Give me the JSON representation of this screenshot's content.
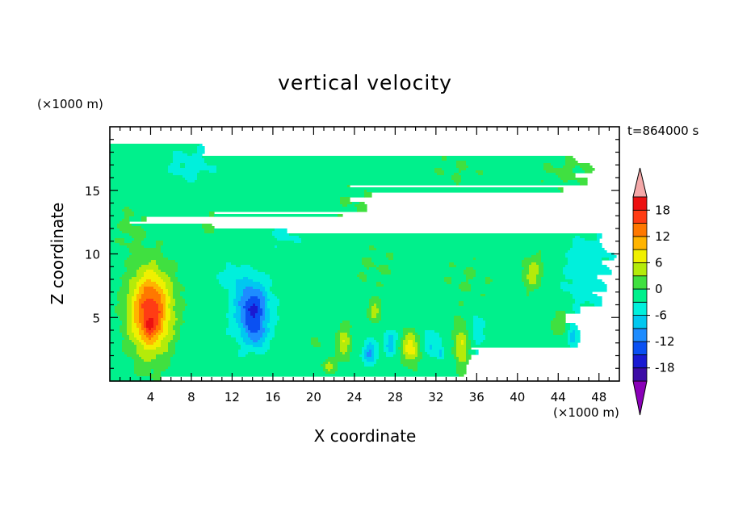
{
  "chart_data": {
    "type": "heatmap",
    "title": "vertical velocity",
    "xlabel": "X coordinate",
    "ylabel": "Z coordinate",
    "x_unit": "(×1000 m)",
    "z_unit": "(×1000 m)",
    "time_label": "t=864000 s",
    "x_ticks": [
      "4",
      "8",
      "12",
      "16",
      "20",
      "24",
      "28",
      "32",
      "36",
      "40",
      "44",
      "48"
    ],
    "z_ticks": [
      "5",
      "10",
      "15"
    ],
    "xlim": [
      0,
      50
    ],
    "zlim": [
      0,
      20
    ],
    "colorbar": {
      "labels": [
        "18",
        "12",
        "6",
        "0",
        "-6",
        "-12",
        "-18"
      ],
      "levels": [
        -21,
        -18,
        -15,
        -12,
        -9,
        -6,
        -3,
        0,
        3,
        6,
        9,
        12,
        15,
        18,
        21
      ],
      "colors": [
        "#8a00b8",
        "#3c0ca6",
        "#1a1ad2",
        "#0a50f2",
        "#1e8cff",
        "#00c8f0",
        "#00f0dc",
        "#00f08c",
        "#40e040",
        "#b4eb0a",
        "#f0f000",
        "#ffb400",
        "#ff7800",
        "#ff3c14",
        "#ec1010",
        "#f4a8a8"
      ],
      "extend": "both"
    },
    "features": [
      {
        "x": 4,
        "z": 5.5,
        "w": 19,
        "sx": 2.0,
        "sz": 3.2
      },
      {
        "x": 3.9,
        "z": 4.2,
        "w": 4,
        "sx": 0.6,
        "sz": 0.8
      },
      {
        "x": 14,
        "z": 5.5,
        "w": -14,
        "sx": 1.6,
        "sz": 2.3
      },
      {
        "x": 14.5,
        "z": 3.5,
        "w": -4,
        "sx": 0.8,
        "sz": 0.9
      },
      {
        "x": 20,
        "z": 3.5,
        "w": 2,
        "sx": 0.8,
        "sz": 0.9
      },
      {
        "x": 21.5,
        "z": 1.2,
        "w": 6,
        "sx": 0.6,
        "sz": 0.6
      },
      {
        "x": 23,
        "z": 3.0,
        "w": 7,
        "sx": 0.7,
        "sz": 1.3
      },
      {
        "x": 25.5,
        "z": 2.2,
        "w": -8,
        "sx": 0.7,
        "sz": 0.9
      },
      {
        "x": 26,
        "z": 5.5,
        "w": 6,
        "sx": 0.6,
        "sz": 0.8
      },
      {
        "x": 27.5,
        "z": 3.0,
        "w": -6,
        "sx": 0.6,
        "sz": 1.0
      },
      {
        "x": 29.5,
        "z": 2.6,
        "w": 10,
        "sx": 0.8,
        "sz": 1.2
      },
      {
        "x": 31.5,
        "z": 3.0,
        "w": -5,
        "sx": 0.7,
        "sz": 1.0
      },
      {
        "x": 32.5,
        "z": 2.2,
        "w": -5,
        "sx": 0.4,
        "sz": 0.6
      },
      {
        "x": 34.5,
        "z": 2.8,
        "w": 8,
        "sx": 0.7,
        "sz": 1.7
      },
      {
        "x": 36,
        "z": 4.0,
        "w": -3,
        "sx": 0.8,
        "sz": 1.5
      },
      {
        "x": 41.5,
        "z": 8.5,
        "w": 6,
        "sx": 1.0,
        "sz": 1.3
      },
      {
        "x": 44,
        "z": 4.5,
        "w": 3,
        "sx": 0.9,
        "sz": 1.2
      },
      {
        "x": 45.5,
        "z": 3.5,
        "w": -7,
        "sx": 0.5,
        "sz": 0.7
      },
      {
        "x": 46.5,
        "z": 7.5,
        "w": -3,
        "sx": 2.0,
        "sz": 2.0
      },
      {
        "x": 10,
        "z": 12,
        "w": 1.5,
        "sx": 1.5,
        "sz": 1.5
      },
      {
        "x": 2,
        "z": 12,
        "w": 2,
        "sx": 1.5,
        "sz": 2.0
      },
      {
        "x": 17,
        "z": 11.5,
        "w": -2,
        "sx": 2.0,
        "sz": 1.0
      },
      {
        "x": 47,
        "z": 10,
        "w": -3,
        "sx": 2.0,
        "sz": 1.5
      },
      {
        "x": 35,
        "z": 8,
        "w": 1.5,
        "sx": 3.0,
        "sz": 2.0
      },
      {
        "x": 26,
        "z": 9,
        "w": 1.5,
        "sx": 3.0,
        "sz": 2.0
      },
      {
        "x": 8,
        "z": 17,
        "w": -2.5,
        "sx": 2.5,
        "sz": 1.5
      },
      {
        "x": 24,
        "z": 14,
        "w": 1.5,
        "sx": 2.5,
        "sz": 1.5
      },
      {
        "x": 45,
        "z": 16.5,
        "w": 2,
        "sx": 3.0,
        "sz": 1.5
      },
      {
        "x": 34,
        "z": 16.5,
        "w": 1.5,
        "sx": 3.0,
        "sz": 1.5
      },
      {
        "x": 12,
        "z": 8,
        "w": -3,
        "sx": 1.5,
        "sz": 1.0
      }
    ],
    "background_w": -1.5
  }
}
